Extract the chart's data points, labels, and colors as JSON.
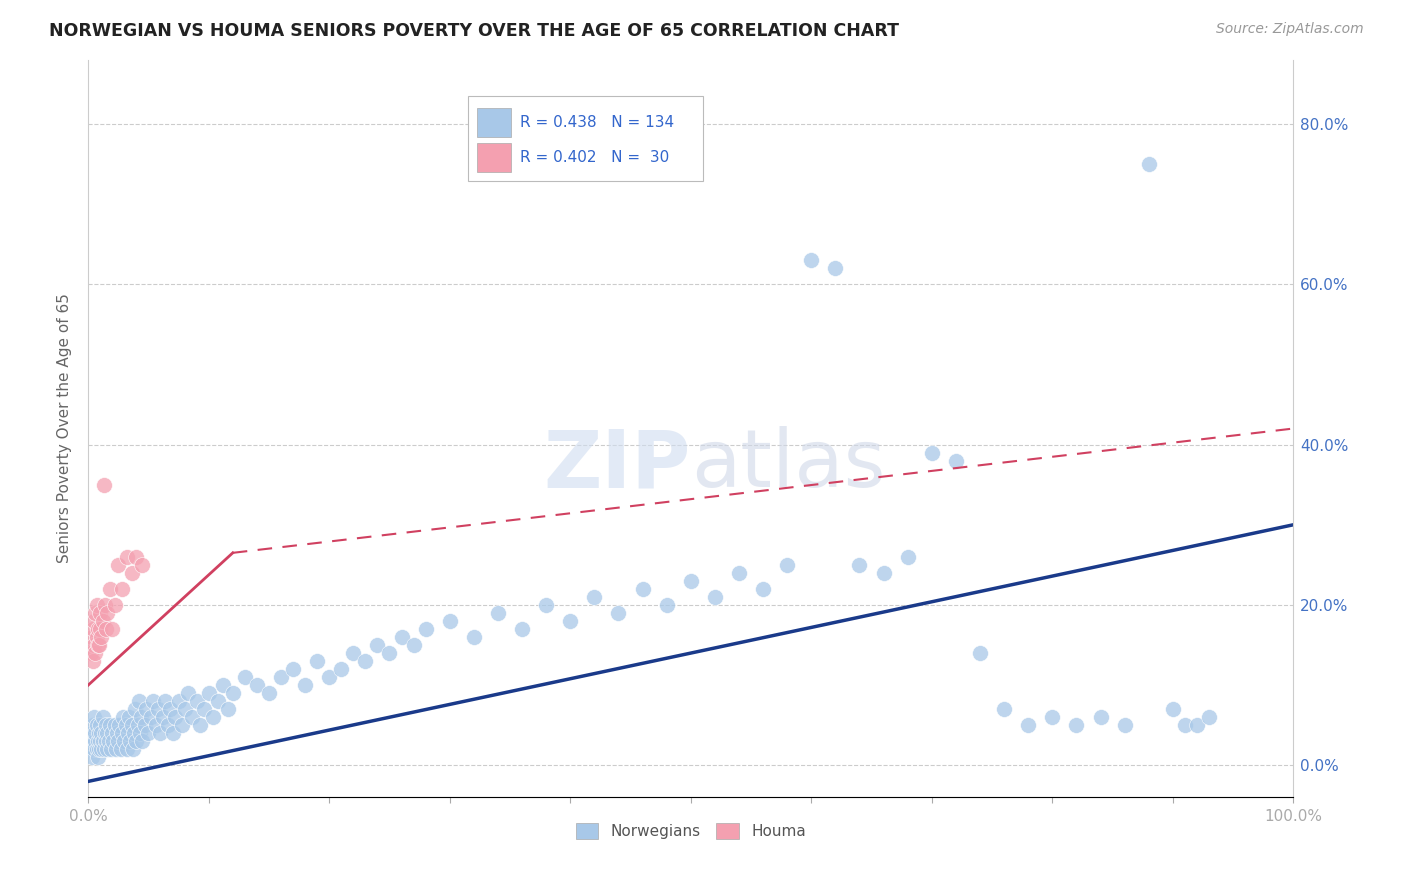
{
  "title": "NORWEGIAN VS HOUMA SENIORS POVERTY OVER THE AGE OF 65 CORRELATION CHART",
  "source": "Source: ZipAtlas.com",
  "ylabel": "Seniors Poverty Over the Age of 65",
  "background_color": "#ffffff",
  "grid_color": "#cccccc",
  "norwegian_color": "#a8c8e8",
  "houma_color": "#f4a0b0",
  "norwegian_line_color": "#1a3a8a",
  "houma_line_color": "#d04060",
  "R_norwegian": 0.438,
  "N_norwegian": 134,
  "R_houma": 0.402,
  "N_houma": 30,
  "nor_line_x0": 0.0,
  "nor_line_y0": -0.02,
  "nor_line_x1": 1.0,
  "nor_line_y1": 0.3,
  "hom_line_solid_x0": 0.0,
  "hom_line_solid_y0": 0.1,
  "hom_line_solid_x1": 0.12,
  "hom_line_solid_y1": 0.265,
  "hom_line_dash_x0": 0.12,
  "hom_line_dash_y0": 0.265,
  "hom_line_dash_x1": 1.0,
  "hom_line_dash_y1": 0.42,
  "xlim": [
    0.0,
    1.0
  ],
  "ylim": [
    -0.04,
    0.88
  ],
  "yticks": [
    0.0,
    0.2,
    0.4,
    0.6,
    0.8
  ],
  "norwegian_x": [
    0.002,
    0.003,
    0.003,
    0.004,
    0.004,
    0.005,
    0.005,
    0.006,
    0.006,
    0.007,
    0.007,
    0.008,
    0.008,
    0.009,
    0.009,
    0.01,
    0.01,
    0.011,
    0.011,
    0.012,
    0.012,
    0.013,
    0.014,
    0.015,
    0.015,
    0.016,
    0.016,
    0.017,
    0.018,
    0.019,
    0.02,
    0.021,
    0.022,
    0.023,
    0.024,
    0.025,
    0.026,
    0.027,
    0.028,
    0.029,
    0.03,
    0.031,
    0.032,
    0.033,
    0.034,
    0.035,
    0.036,
    0.037,
    0.038,
    0.039,
    0.04,
    0.041,
    0.042,
    0.043,
    0.044,
    0.045,
    0.047,
    0.048,
    0.05,
    0.052,
    0.054,
    0.056,
    0.058,
    0.06,
    0.062,
    0.064,
    0.066,
    0.068,
    0.07,
    0.072,
    0.075,
    0.078,
    0.08,
    0.083,
    0.086,
    0.09,
    0.093,
    0.096,
    0.1,
    0.104,
    0.108,
    0.112,
    0.116,
    0.12,
    0.13,
    0.14,
    0.15,
    0.16,
    0.17,
    0.18,
    0.19,
    0.2,
    0.21,
    0.22,
    0.23,
    0.24,
    0.25,
    0.26,
    0.27,
    0.28,
    0.3,
    0.32,
    0.34,
    0.36,
    0.38,
    0.4,
    0.42,
    0.44,
    0.46,
    0.48,
    0.5,
    0.52,
    0.54,
    0.56,
    0.58,
    0.6,
    0.62,
    0.64,
    0.66,
    0.68,
    0.7,
    0.72,
    0.74,
    0.76,
    0.78,
    0.8,
    0.82,
    0.84,
    0.86,
    0.88,
    0.9,
    0.91,
    0.92,
    0.93
  ],
  "norwegian_y": [
    0.02,
    0.04,
    0.01,
    0.03,
    0.05,
    0.02,
    0.06,
    0.03,
    0.04,
    0.02,
    0.05,
    0.03,
    0.01,
    0.04,
    0.02,
    0.03,
    0.05,
    0.02,
    0.04,
    0.03,
    0.06,
    0.02,
    0.04,
    0.03,
    0.05,
    0.02,
    0.04,
    0.03,
    0.05,
    0.02,
    0.04,
    0.03,
    0.05,
    0.02,
    0.04,
    0.03,
    0.05,
    0.02,
    0.04,
    0.06,
    0.03,
    0.05,
    0.02,
    0.04,
    0.06,
    0.03,
    0.05,
    0.02,
    0.04,
    0.07,
    0.03,
    0.05,
    0.08,
    0.04,
    0.06,
    0.03,
    0.05,
    0.07,
    0.04,
    0.06,
    0.08,
    0.05,
    0.07,
    0.04,
    0.06,
    0.08,
    0.05,
    0.07,
    0.04,
    0.06,
    0.08,
    0.05,
    0.07,
    0.09,
    0.06,
    0.08,
    0.05,
    0.07,
    0.09,
    0.06,
    0.08,
    0.1,
    0.07,
    0.09,
    0.11,
    0.1,
    0.09,
    0.11,
    0.12,
    0.1,
    0.13,
    0.11,
    0.12,
    0.14,
    0.13,
    0.15,
    0.14,
    0.16,
    0.15,
    0.17,
    0.18,
    0.16,
    0.19,
    0.17,
    0.2,
    0.18,
    0.21,
    0.19,
    0.22,
    0.2,
    0.23,
    0.21,
    0.24,
    0.22,
    0.25,
    0.63,
    0.62,
    0.25,
    0.24,
    0.26,
    0.39,
    0.38,
    0.14,
    0.07,
    0.05,
    0.06,
    0.05,
    0.06,
    0.05,
    0.75,
    0.07,
    0.05,
    0.05,
    0.06
  ],
  "houma_x": [
    0.002,
    0.003,
    0.004,
    0.004,
    0.005,
    0.005,
    0.006,
    0.006,
    0.007,
    0.007,
    0.008,
    0.008,
    0.009,
    0.01,
    0.01,
    0.011,
    0.012,
    0.013,
    0.014,
    0.015,
    0.016,
    0.018,
    0.02,
    0.022,
    0.025,
    0.028,
    0.032,
    0.036,
    0.04,
    0.045
  ],
  "houma_y": [
    0.14,
    0.16,
    0.13,
    0.17,
    0.15,
    0.18,
    0.14,
    0.19,
    0.16,
    0.2,
    0.15,
    0.17,
    0.15,
    0.17,
    0.19,
    0.16,
    0.18,
    0.35,
    0.2,
    0.17,
    0.19,
    0.22,
    0.17,
    0.2,
    0.25,
    0.22,
    0.26,
    0.24,
    0.26,
    0.25
  ]
}
